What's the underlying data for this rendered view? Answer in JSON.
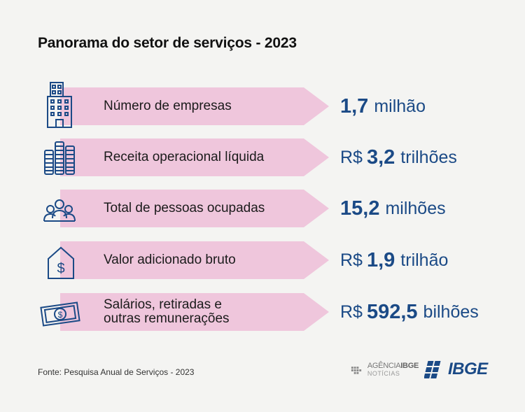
{
  "title": "Panorama do setor de serviços - 2023",
  "rows": [
    {
      "icon": "building-icon",
      "label": "Número de empresas",
      "prefix": "",
      "number": "1,7",
      "unit": "milhão"
    },
    {
      "icon": "coins-stack-icon",
      "label": "Receita operacional líquida",
      "prefix": "R$",
      "number": "3,2",
      "unit": "trilhões"
    },
    {
      "icon": "people-group-icon",
      "label": "Total de pessoas ocupadas",
      "prefix": "",
      "number": "15,2",
      "unit": "milhões"
    },
    {
      "icon": "house-dollar-icon",
      "label": "Valor adicionado bruto",
      "prefix": "R$",
      "number": "1,9",
      "unit": "trilhão"
    },
    {
      "icon": "banknote-icon",
      "label": "Salários, retiradas e\noutras remunerações",
      "prefix": "R$",
      "number": "592,5",
      "unit": "bilhões"
    }
  ],
  "source": "Fonte: Pesquisa Anual de Serviços - 2023",
  "logos": {
    "agencia_top_a": "AGÊNCIA",
    "agencia_top_b": "IBGE",
    "agencia_bottom": "NOTÍCIAS",
    "ibge": "IBGE"
  },
  "colors": {
    "accent_pink": "#efc6dc",
    "value_blue": "#1b4a86",
    "background": "#f4f4f2"
  }
}
